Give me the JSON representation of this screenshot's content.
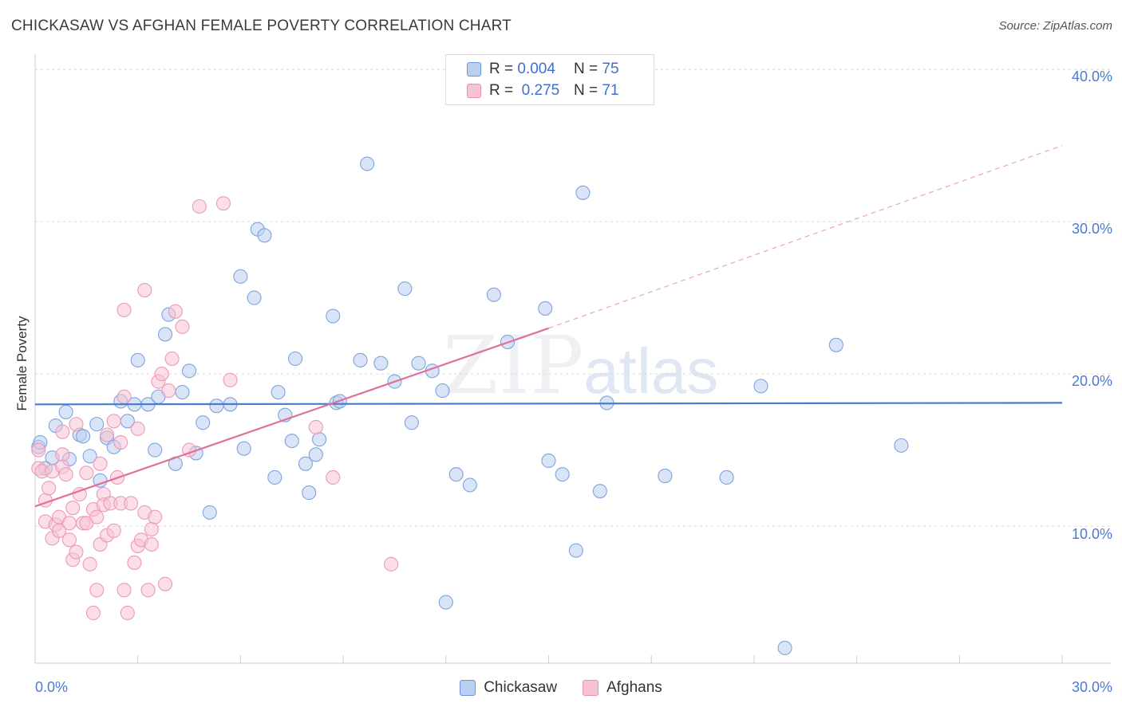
{
  "title": "CHICKASAW VS AFGHAN FEMALE POVERTY CORRELATION CHART",
  "source": "Source: ZipAtlas.com",
  "watermark": {
    "zip": "ZIP",
    "atlas": "atlas"
  },
  "colors": {
    "chickasaw": "#4a7bd0",
    "afghans": "#e07099",
    "chickasaw_fill": "#b9d0f0",
    "afghans_fill": "#f7c3d4"
  },
  "legend_top": {
    "rows": [
      {
        "r_label": "R = ",
        "r_value": "0.004",
        "n_label": "N = ",
        "n_value": "75"
      },
      {
        "r_label": "R = ",
        "r_value": "0.275",
        "n_label": "N = ",
        "n_value": "71"
      }
    ]
  },
  "legend_bottom": {
    "items": [
      "Chickasaw",
      "Afghans"
    ]
  },
  "chart_data": {
    "type": "scatter",
    "title": "CHICKASAW VS AFGHAN FEMALE POVERTY CORRELATION CHART",
    "xlabel": "",
    "ylabel": "Female Poverty",
    "x_tick_labels": [
      "0.0%",
      "30.0%"
    ],
    "y_tick_labels": [
      "10.0%",
      "20.0%",
      "30.0%",
      "40.0%"
    ],
    "y_ticks": [
      10,
      20,
      30,
      40
    ],
    "xlim": [
      0,
      30
    ],
    "ylim": [
      1.0,
      41.0
    ],
    "grid": true,
    "legend_position": "top-center",
    "series": [
      {
        "name": "Chickasaw",
        "r": 0.004,
        "n": 75,
        "trend": {
          "x": [
            0,
            30
          ],
          "y": [
            18.0,
            18.1
          ]
        },
        "points": [
          [
            0.1,
            15.2
          ],
          [
            0.3,
            13.8
          ],
          [
            0.5,
            14.5
          ],
          [
            0.6,
            16.6
          ],
          [
            0.9,
            17.5
          ],
          [
            1.0,
            14.4
          ],
          [
            1.3,
            16.0
          ],
          [
            1.4,
            15.9
          ],
          [
            1.6,
            14.6
          ],
          [
            1.8,
            16.7
          ],
          [
            1.9,
            13.0
          ],
          [
            2.1,
            15.8
          ],
          [
            2.3,
            15.2
          ],
          [
            2.5,
            18.2
          ],
          [
            2.7,
            16.9
          ],
          [
            2.9,
            18.0
          ],
          [
            3.0,
            20.9
          ],
          [
            3.3,
            18.0
          ],
          [
            3.5,
            15.0
          ],
          [
            3.6,
            18.5
          ],
          [
            3.8,
            22.6
          ],
          [
            3.9,
            23.9
          ],
          [
            4.1,
            14.1
          ],
          [
            4.3,
            18.8
          ],
          [
            4.5,
            20.2
          ],
          [
            4.7,
            14.8
          ],
          [
            4.9,
            16.8
          ],
          [
            5.1,
            10.9
          ],
          [
            5.3,
            17.9
          ],
          [
            5.7,
            18.0
          ],
          [
            6.0,
            26.4
          ],
          [
            6.1,
            15.1
          ],
          [
            6.4,
            25.0
          ],
          [
            6.5,
            29.5
          ],
          [
            6.7,
            29.1
          ],
          [
            7.0,
            13.2
          ],
          [
            7.1,
            18.8
          ],
          [
            7.3,
            17.3
          ],
          [
            7.5,
            15.6
          ],
          [
            7.6,
            21.0
          ],
          [
            7.9,
            14.1
          ],
          [
            8.0,
            12.2
          ],
          [
            8.2,
            14.7
          ],
          [
            8.3,
            15.7
          ],
          [
            8.7,
            23.8
          ],
          [
            8.8,
            18.1
          ],
          [
            8.9,
            18.2
          ],
          [
            9.5,
            20.9
          ],
          [
            9.7,
            33.8
          ],
          [
            10.1,
            20.7
          ],
          [
            10.5,
            19.5
          ],
          [
            10.8,
            25.6
          ],
          [
            11.0,
            16.8
          ],
          [
            11.2,
            20.7
          ],
          [
            11.6,
            20.2
          ],
          [
            11.9,
            18.9
          ],
          [
            12.0,
            5.0
          ],
          [
            12.3,
            13.4
          ],
          [
            12.7,
            12.7
          ],
          [
            13.4,
            25.2
          ],
          [
            13.8,
            22.1
          ],
          [
            14.9,
            24.3
          ],
          [
            15.0,
            14.3
          ],
          [
            15.4,
            13.4
          ],
          [
            15.8,
            8.4
          ],
          [
            16.0,
            31.9
          ],
          [
            16.5,
            12.3
          ],
          [
            16.7,
            18.1
          ],
          [
            18.4,
            13.3
          ],
          [
            20.2,
            13.2
          ],
          [
            21.2,
            19.2
          ],
          [
            21.9,
            2.0
          ],
          [
            23.4,
            21.9
          ],
          [
            25.3,
            15.3
          ],
          [
            0.15,
            15.5
          ]
        ]
      },
      {
        "name": "Afghans",
        "r": 0.275,
        "n": 71,
        "trend": {
          "x": [
            0,
            15.0
          ],
          "y": [
            11.3,
            23.0
          ],
          "dash_x": [
            15.0,
            30
          ],
          "dash_y": [
            23.0,
            35.0
          ]
        },
        "points": [
          [
            0.1,
            15.0
          ],
          [
            0.1,
            13.8
          ],
          [
            0.2,
            13.6
          ],
          [
            0.3,
            10.3
          ],
          [
            0.3,
            11.7
          ],
          [
            0.4,
            12.5
          ],
          [
            0.5,
            13.6
          ],
          [
            0.5,
            9.2
          ],
          [
            0.6,
            10.1
          ],
          [
            0.7,
            10.6
          ],
          [
            0.7,
            9.7
          ],
          [
            0.8,
            14.7
          ],
          [
            0.8,
            16.2
          ],
          [
            0.8,
            13.9
          ],
          [
            0.9,
            13.4
          ],
          [
            1.0,
            10.2
          ],
          [
            1.0,
            9.1
          ],
          [
            1.1,
            7.8
          ],
          [
            1.1,
            11.2
          ],
          [
            1.2,
            8.3
          ],
          [
            1.2,
            16.7
          ],
          [
            1.3,
            12.1
          ],
          [
            1.4,
            10.2
          ],
          [
            1.5,
            13.5
          ],
          [
            1.5,
            10.2
          ],
          [
            1.6,
            7.5
          ],
          [
            1.7,
            11.1
          ],
          [
            1.7,
            4.3
          ],
          [
            1.8,
            5.8
          ],
          [
            1.8,
            10.6
          ],
          [
            1.9,
            14.1
          ],
          [
            1.9,
            8.8
          ],
          [
            2.0,
            12.1
          ],
          [
            2.0,
            11.4
          ],
          [
            2.1,
            16.0
          ],
          [
            2.1,
            9.4
          ],
          [
            2.2,
            11.5
          ],
          [
            2.3,
            9.7
          ],
          [
            2.3,
            16.9
          ],
          [
            2.4,
            13.2
          ],
          [
            2.5,
            11.5
          ],
          [
            2.5,
            15.5
          ],
          [
            2.6,
            18.5
          ],
          [
            2.6,
            24.2
          ],
          [
            2.6,
            5.8
          ],
          [
            2.7,
            4.3
          ],
          [
            2.8,
            11.5
          ],
          [
            2.9,
            7.6
          ],
          [
            3.0,
            16.4
          ],
          [
            3.0,
            8.7
          ],
          [
            3.1,
            9.1
          ],
          [
            3.2,
            25.5
          ],
          [
            3.2,
            10.9
          ],
          [
            3.3,
            5.8
          ],
          [
            3.4,
            9.8
          ],
          [
            3.5,
            10.6
          ],
          [
            3.6,
            19.5
          ],
          [
            3.7,
            20.0
          ],
          [
            3.8,
            6.2
          ],
          [
            3.9,
            18.9
          ],
          [
            4.0,
            21.0
          ],
          [
            4.1,
            24.1
          ],
          [
            4.3,
            23.1
          ],
          [
            4.5,
            15.0
          ],
          [
            4.8,
            31.0
          ],
          [
            5.5,
            31.2
          ],
          [
            5.7,
            19.6
          ],
          [
            8.2,
            16.5
          ],
          [
            8.7,
            13.2
          ],
          [
            10.4,
            7.5
          ],
          [
            3.4,
            8.8
          ]
        ]
      }
    ]
  }
}
